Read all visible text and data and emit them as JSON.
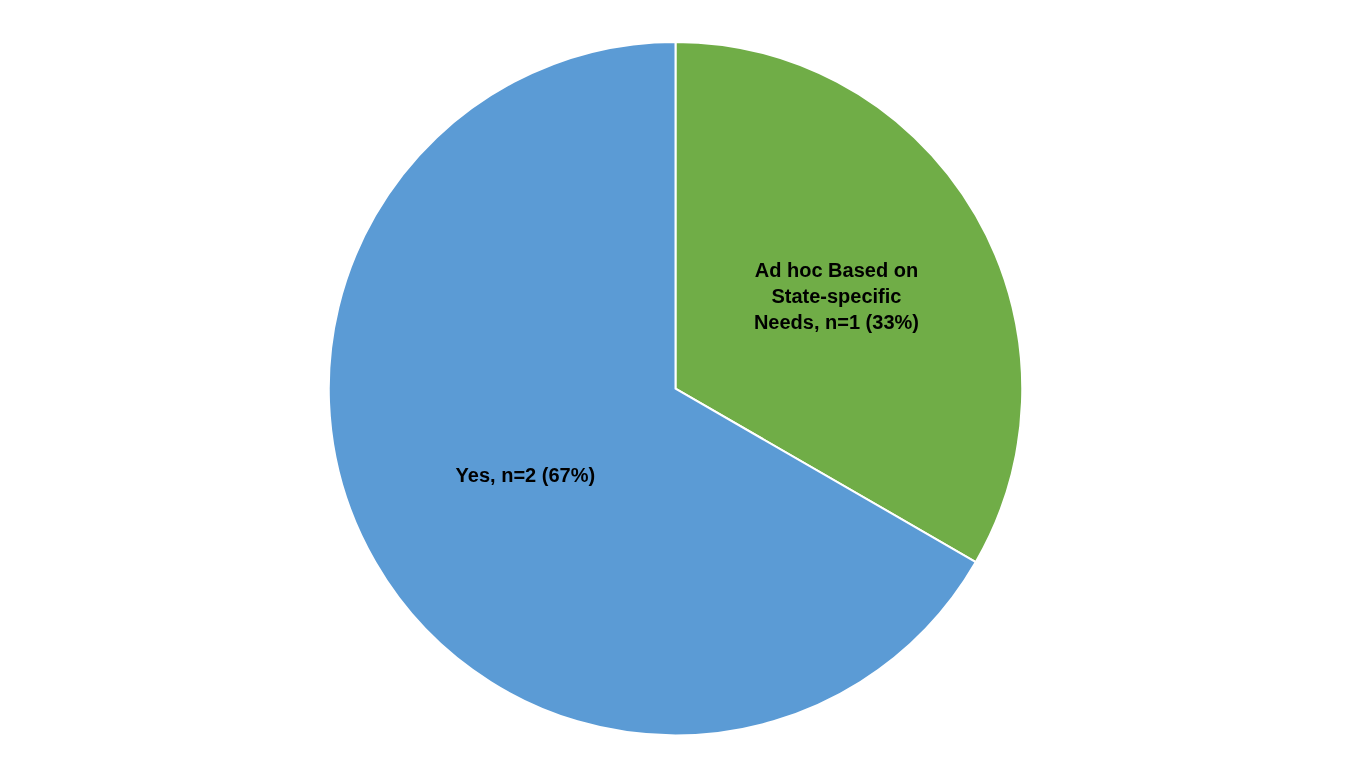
{
  "chart_data": {
    "type": "pie",
    "categories": [
      "Ad hoc Based on State-specific Needs, n=1 (33%)",
      "Yes, n=2 (67%)"
    ],
    "values": [
      1,
      2
    ],
    "colors": [
      "#70ad47",
      "#5b9bd5"
    ],
    "legend": false
  }
}
